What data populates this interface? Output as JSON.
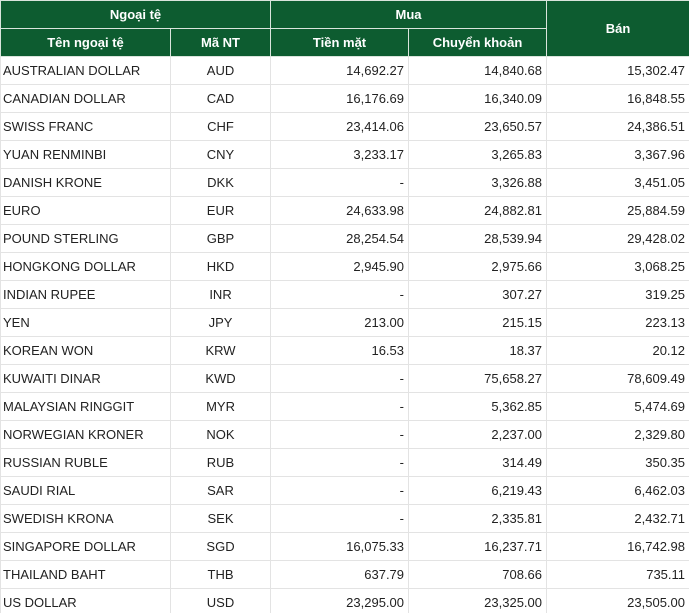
{
  "header": {
    "group_name": "Ngoại tệ",
    "group_buy": "Mua",
    "sell": "Bán",
    "name": "Tên ngoại tệ",
    "code": "Mã NT",
    "cash": "Tiền mặt",
    "transfer": "Chuyển khoản"
  },
  "table": {
    "rows": [
      [
        "AUSTRALIAN DOLLAR",
        "AUD",
        "14,692.27",
        "14,840.68",
        "15,302.47"
      ],
      [
        "CANADIAN DOLLAR",
        "CAD",
        "16,176.69",
        "16,340.09",
        "16,848.55"
      ],
      [
        "SWISS FRANC",
        "CHF",
        "23,414.06",
        "23,650.57",
        "24,386.51"
      ],
      [
        "YUAN RENMINBI",
        "CNY",
        "3,233.17",
        "3,265.83",
        "3,367.96"
      ],
      [
        "DANISH KRONE",
        "DKK",
        "-",
        "3,326.88",
        "3,451.05"
      ],
      [
        "EURO",
        "EUR",
        "24,633.98",
        "24,882.81",
        "25,884.59"
      ],
      [
        "POUND STERLING",
        "GBP",
        "28,254.54",
        "28,539.94",
        "29,428.02"
      ],
      [
        "HONGKONG DOLLAR",
        "HKD",
        "2,945.90",
        "2,975.66",
        "3,068.25"
      ],
      [
        "INDIAN RUPEE",
        "INR",
        "-",
        "307.27",
        "319.25"
      ],
      [
        "YEN",
        "JPY",
        "213.00",
        "215.15",
        "223.13"
      ],
      [
        "KOREAN WON",
        "KRW",
        "16.53",
        "18.37",
        "20.12"
      ],
      [
        "KUWAITI DINAR",
        "KWD",
        "-",
        "75,658.27",
        "78,609.49"
      ],
      [
        "MALAYSIAN RINGGIT",
        "MYR",
        "-",
        "5,362.85",
        "5,474.69"
      ],
      [
        "NORWEGIAN KRONER",
        "NOK",
        "-",
        "2,237.00",
        "2,329.80"
      ],
      [
        "RUSSIAN RUBLE",
        "RUB",
        "-",
        "314.49",
        "350.35"
      ],
      [
        "SAUDI RIAL",
        "SAR",
        "-",
        "6,219.43",
        "6,462.03"
      ],
      [
        "SWEDISH KRONA",
        "SEK",
        "-",
        "2,335.81",
        "2,432.71"
      ],
      [
        "SINGAPORE DOLLAR",
        "SGD",
        "16,075.33",
        "16,237.71",
        "16,742.98"
      ],
      [
        "THAILAND BAHT",
        "THB",
        "637.79",
        "708.66",
        "735.11"
      ],
      [
        "US DOLLAR",
        "USD",
        "23,295.00",
        "23,325.00",
        "23,505.00"
      ]
    ]
  }
}
